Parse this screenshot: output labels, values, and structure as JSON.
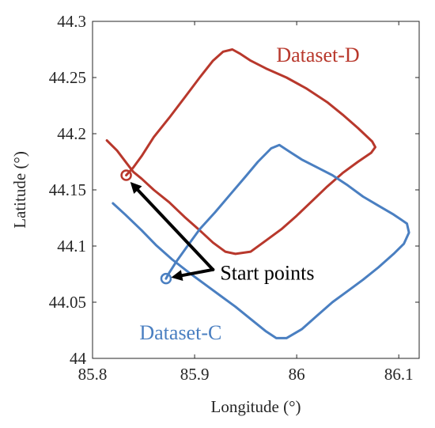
{
  "chart_data": {
    "type": "line",
    "xlabel": "Longitude (°)",
    "ylabel": "Latitude (°)",
    "xlim": [
      85.8,
      86.12
    ],
    "ylim": [
      44.0,
      44.3
    ],
    "xticks": [
      85.8,
      85.9,
      86.0,
      86.1
    ],
    "yticks": [
      44.0,
      44.05,
      44.1,
      44.15,
      44.2,
      44.25,
      44.3
    ],
    "xtick_labels": [
      "85.8",
      "85.9",
      "86",
      "86.1"
    ],
    "ytick_labels": [
      "44",
      "44.05",
      "44.1",
      "44.15",
      "44.2",
      "44.25",
      "44.3"
    ],
    "grid": false,
    "box": true,
    "series": [
      {
        "name": "Dataset-D",
        "color": "#b8382c",
        "start": [
          85.833,
          44.163
        ],
        "points": [
          [
            85.814,
            44.194
          ],
          [
            85.824,
            44.185
          ],
          [
            85.834,
            44.173
          ],
          [
            85.84,
            44.166
          ],
          [
            85.848,
            44.16
          ],
          [
            85.86,
            44.15
          ],
          [
            85.875,
            44.139
          ],
          [
            85.89,
            44.126
          ],
          [
            85.905,
            44.114
          ],
          [
            85.918,
            44.103
          ],
          [
            85.93,
            44.095
          ],
          [
            85.94,
            44.093
          ],
          [
            85.955,
            44.095
          ],
          [
            85.97,
            44.105
          ],
          [
            85.985,
            44.115
          ],
          [
            86.0,
            44.127
          ],
          [
            86.015,
            44.14
          ],
          [
            86.03,
            44.153
          ],
          [
            86.045,
            44.165
          ],
          [
            86.06,
            44.175
          ],
          [
            86.073,
            44.183
          ],
          [
            86.077,
            44.188
          ],
          [
            86.074,
            44.193
          ],
          [
            86.06,
            44.205
          ],
          [
            86.045,
            44.217
          ],
          [
            86.03,
            44.228
          ],
          [
            86.01,
            44.24
          ],
          [
            85.99,
            44.25
          ],
          [
            85.97,
            44.258
          ],
          [
            85.955,
            44.265
          ],
          [
            85.945,
            44.271
          ],
          [
            85.937,
            44.275
          ],
          [
            85.928,
            44.273
          ],
          [
            85.918,
            44.265
          ],
          [
            85.905,
            44.25
          ],
          [
            85.89,
            44.232
          ],
          [
            85.875,
            44.214
          ],
          [
            85.86,
            44.197
          ],
          [
            85.848,
            44.18
          ],
          [
            85.84,
            44.17
          ],
          [
            85.833,
            44.163
          ]
        ]
      },
      {
        "name": "Dataset-C",
        "color": "#4a7fc1",
        "start": [
          85.872,
          44.071
        ],
        "points": [
          [
            85.82,
            44.138
          ],
          [
            85.832,
            44.128
          ],
          [
            85.848,
            44.114
          ],
          [
            85.862,
            44.101
          ],
          [
            85.878,
            44.088
          ],
          [
            85.895,
            44.076
          ],
          [
            85.91,
            44.066
          ],
          [
            85.925,
            44.056
          ],
          [
            85.94,
            44.046
          ],
          [
            85.955,
            44.035
          ],
          [
            85.97,
            44.024
          ],
          [
            85.98,
            44.018
          ],
          [
            85.99,
            44.018
          ],
          [
            86.005,
            44.026
          ],
          [
            86.02,
            44.038
          ],
          [
            86.035,
            44.05
          ],
          [
            86.05,
            44.06
          ],
          [
            86.065,
            44.07
          ],
          [
            86.08,
            44.081
          ],
          [
            86.095,
            44.093
          ],
          [
            86.105,
            44.102
          ],
          [
            86.11,
            44.112
          ],
          [
            86.108,
            44.12
          ],
          [
            86.095,
            44.128
          ],
          [
            86.08,
            44.136
          ],
          [
            86.065,
            44.144
          ],
          [
            86.05,
            44.154
          ],
          [
            86.035,
            44.163
          ],
          [
            86.02,
            44.17
          ],
          [
            86.005,
            44.177
          ],
          [
            85.993,
            44.184
          ],
          [
            85.983,
            44.19
          ],
          [
            85.975,
            44.187
          ],
          [
            85.962,
            44.175
          ],
          [
            85.95,
            44.162
          ],
          [
            85.935,
            44.146
          ],
          [
            85.92,
            44.13
          ],
          [
            85.905,
            44.115
          ],
          [
            85.893,
            44.1
          ],
          [
            85.882,
            44.086
          ],
          [
            85.875,
            44.076
          ],
          [
            85.872,
            44.071
          ]
        ]
      }
    ],
    "labels": [
      {
        "text": "Dataset-D",
        "color": "#b8382c",
        "x": 85.98,
        "y": 44.264
      },
      {
        "text": "Dataset-C",
        "color": "#4a7fc1",
        "x": 85.846,
        "y": 44.017
      },
      {
        "text": "Start points",
        "color": "#000000",
        "x": 85.925,
        "y": 44.07
      }
    ],
    "arrows": [
      {
        "color": "#000000",
        "tail": [
          85.918,
          44.079
        ],
        "heads": [
          [
            85.837,
            44.157
          ],
          [
            85.877,
            44.072
          ]
        ]
      }
    ]
  }
}
